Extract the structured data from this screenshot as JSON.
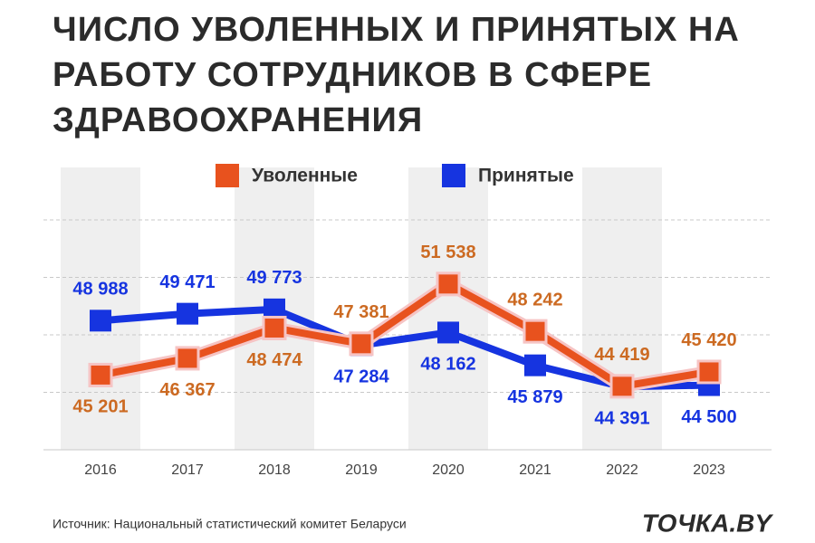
{
  "chart_data": {
    "type": "line",
    "title": "ЧИСЛО УВОЛЕННЫХ И ПРИНЯТЫХ НА РАБОТУ СОТРУДНИКОВ В СФЕРЕ ЗДРАВООХРАНЕНИЯ",
    "categories": [
      "2016",
      "2017",
      "2018",
      "2019",
      "2020",
      "2021",
      "2022",
      "2023"
    ],
    "series": [
      {
        "name": "Принятые",
        "color": "#1634e0",
        "values": [
          48988,
          49471,
          49773,
          47284,
          48162,
          45879,
          44391,
          44500
        ],
        "value_labels": [
          "48 988",
          "49 471",
          "49 773",
          "47 284",
          "48 162",
          "45 879",
          "44 391",
          "44 500"
        ]
      },
      {
        "name": "Уволенные",
        "color": "#e8521e",
        "values": [
          45201,
          46367,
          48474,
          47381,
          51538,
          48242,
          44419,
          45420
        ],
        "value_labels": [
          "45 201",
          "46 367",
          "48 474",
          "47 381",
          "51 538",
          "48 242",
          "44 419",
          "45 420"
        ]
      }
    ],
    "ylim": [
      40000,
      56000
    ],
    "yticks": [
      40000,
      44000,
      48000,
      52000,
      56000
    ],
    "grid": true,
    "source": "Источник: Национальный статистический комитет Беларуси",
    "logo": "ТОЧКА.BY"
  }
}
